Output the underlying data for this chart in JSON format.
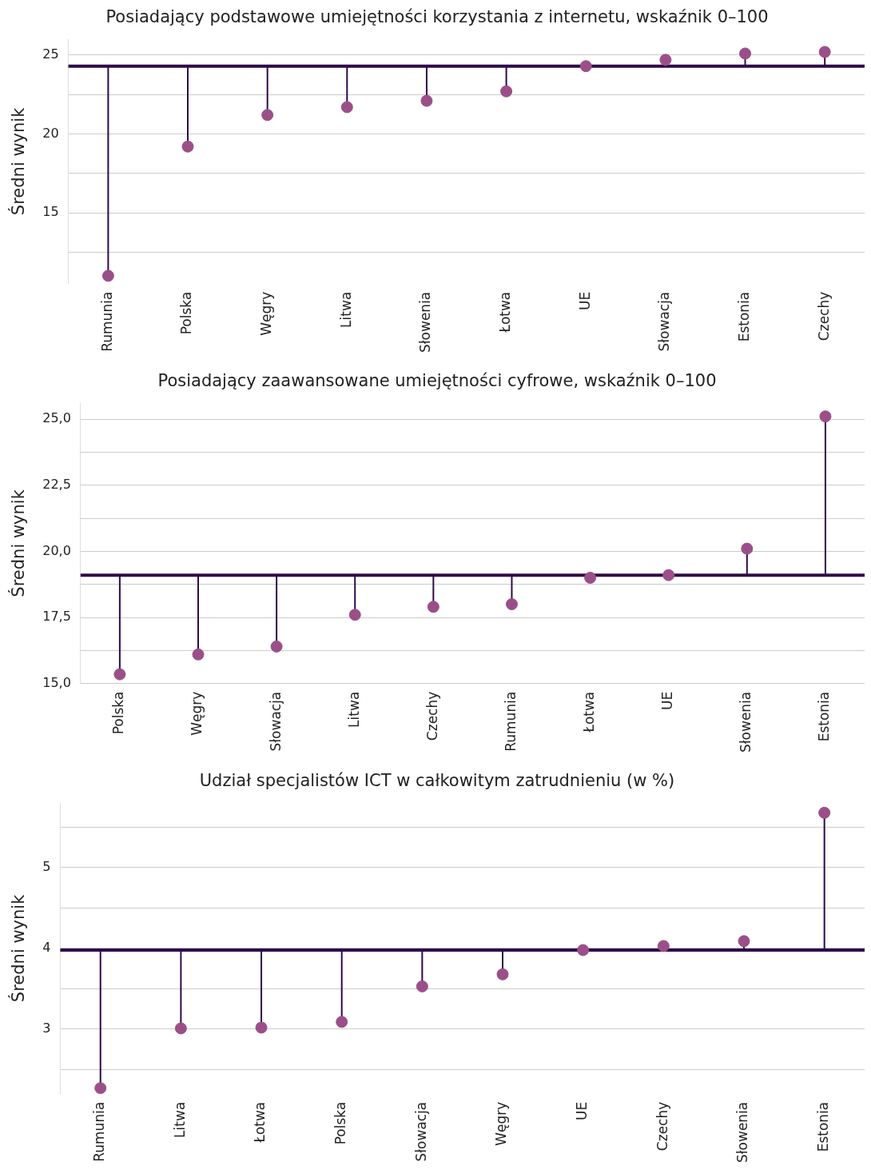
{
  "chart_data": [
    {
      "type": "lollipop",
      "title": "Posiadający podstawowe umiejętności korzystania z internetu, wskaźnik 0–100",
      "ylabel": "Średni wynik",
      "categories": [
        "Rumunia",
        "Polska",
        "Węgry",
        "Litwa",
        "Słowenia",
        "Łotwa",
        "UE",
        "Słowacja",
        "Estonia",
        "Czechy"
      ],
      "series": [
        {
          "color": "#9b4f88",
          "values": [
            11.0,
            19.2,
            21.2,
            21.7,
            22.1,
            22.7,
            24.3,
            24.7,
            25.1,
            25.2
          ],
          "errors": [
            [
              11.0,
              24.3
            ],
            [
              19.2,
              24.3
            ],
            [
              21.2,
              24.3
            ],
            [
              21.7,
              24.3
            ],
            [
              22.1,
              24.3
            ],
            [
              22.7,
              24.3
            ],
            null,
            [
              24.3,
              24.7
            ],
            [
              24.3,
              25.1
            ],
            [
              24.3,
              25.2
            ]
          ]
        }
      ],
      "ref_lines": [
        {
          "axis": "y",
          "value": 24.3,
          "color": "#2e0a4a"
        }
      ],
      "ylim": [
        10.5,
        26
      ],
      "yticks": [
        {
          "value": 12.5,
          "label": null
        },
        15,
        {
          "value": 17.5,
          "label": null
        },
        20,
        {
          "value": 22.5,
          "label": null
        },
        25
      ],
      "grid": "y",
      "legend": false,
      "marker": "circle"
    },
    {
      "type": "lollipop",
      "title": "Posiadający zaawansowane umiejętności cyfrowe, wskaźnik 0–100",
      "ylabel": "Średni wynik",
      "categories": [
        "Polska",
        "Węgry",
        "Słowacja",
        "Litwa",
        "Czechy",
        "Rumunia",
        "Łotwa",
        "UE",
        "Słowenia",
        "Estonia"
      ],
      "series": [
        {
          "color": "#9b4f88",
          "values": [
            15.35,
            16.1,
            16.4,
            17.6,
            17.9,
            18.0,
            19.0,
            19.1,
            20.1,
            25.1
          ],
          "errors": [
            [
              15.35,
              19.1
            ],
            [
              16.1,
              19.1
            ],
            [
              16.4,
              19.1
            ],
            [
              17.6,
              19.1
            ],
            [
              17.9,
              19.1
            ],
            [
              18.0,
              19.1
            ],
            null,
            null,
            [
              19.1,
              20.1
            ],
            [
              19.1,
              25.1
            ]
          ]
        }
      ],
      "ref_lines": [
        {
          "axis": "y",
          "value": 19.1,
          "color": "#2e0a4a"
        }
      ],
      "ylim": [
        15,
        25.6
      ],
      "yticks": [
        {
          "value": 15,
          "label": "15,0"
        },
        {
          "value": 16.25,
          "label": null
        },
        {
          "value": 17.5,
          "label": "17,5"
        },
        {
          "value": 18.75,
          "label": null
        },
        {
          "value": 20,
          "label": "20,0"
        },
        {
          "value": 21.25,
          "label": null
        },
        {
          "value": 22.5,
          "label": "22,5"
        },
        {
          "value": 23.75,
          "label": null
        },
        {
          "value": 25,
          "label": "25,0"
        }
      ],
      "grid": "y",
      "legend": false,
      "marker": "circle"
    },
    {
      "type": "lollipop",
      "title": "Udział specjalistów ICT w całkowitym zatrudnieniu (w %)",
      "ylabel": "Średni wynik",
      "categories": [
        "Rumunia",
        "Litwa",
        "Łotwa",
        "Polska",
        "Słowacja",
        "Węgry",
        "UE",
        "Czechy",
        "Słowenia",
        "Estonia"
      ],
      "series": [
        {
          "color": "#9b4f88",
          "values": [
            2.27,
            3.01,
            3.02,
            3.09,
            3.53,
            3.68,
            3.98,
            4.03,
            4.09,
            5.68
          ],
          "errors": [
            [
              2.27,
              3.98
            ],
            [
              3.01,
              3.98
            ],
            [
              3.02,
              3.98
            ],
            [
              3.09,
              3.98
            ],
            [
              3.53,
              3.98
            ],
            [
              3.68,
              3.98
            ],
            null,
            null,
            [
              3.98,
              4.09
            ],
            [
              3.98,
              5.68
            ]
          ]
        }
      ],
      "ref_lines": [
        {
          "axis": "y",
          "value": 3.98,
          "color": "#2e0a4a"
        }
      ],
      "ylim": [
        2.2,
        5.8
      ],
      "yticks": [
        {
          "value": 2.5,
          "label": null
        },
        3,
        {
          "value": 3.5,
          "label": null
        },
        4,
        {
          "value": 4.5,
          "label": null
        },
        5,
        {
          "value": 5.5,
          "label": null
        }
      ],
      "grid": "y",
      "legend": false,
      "marker": "circle"
    }
  ]
}
